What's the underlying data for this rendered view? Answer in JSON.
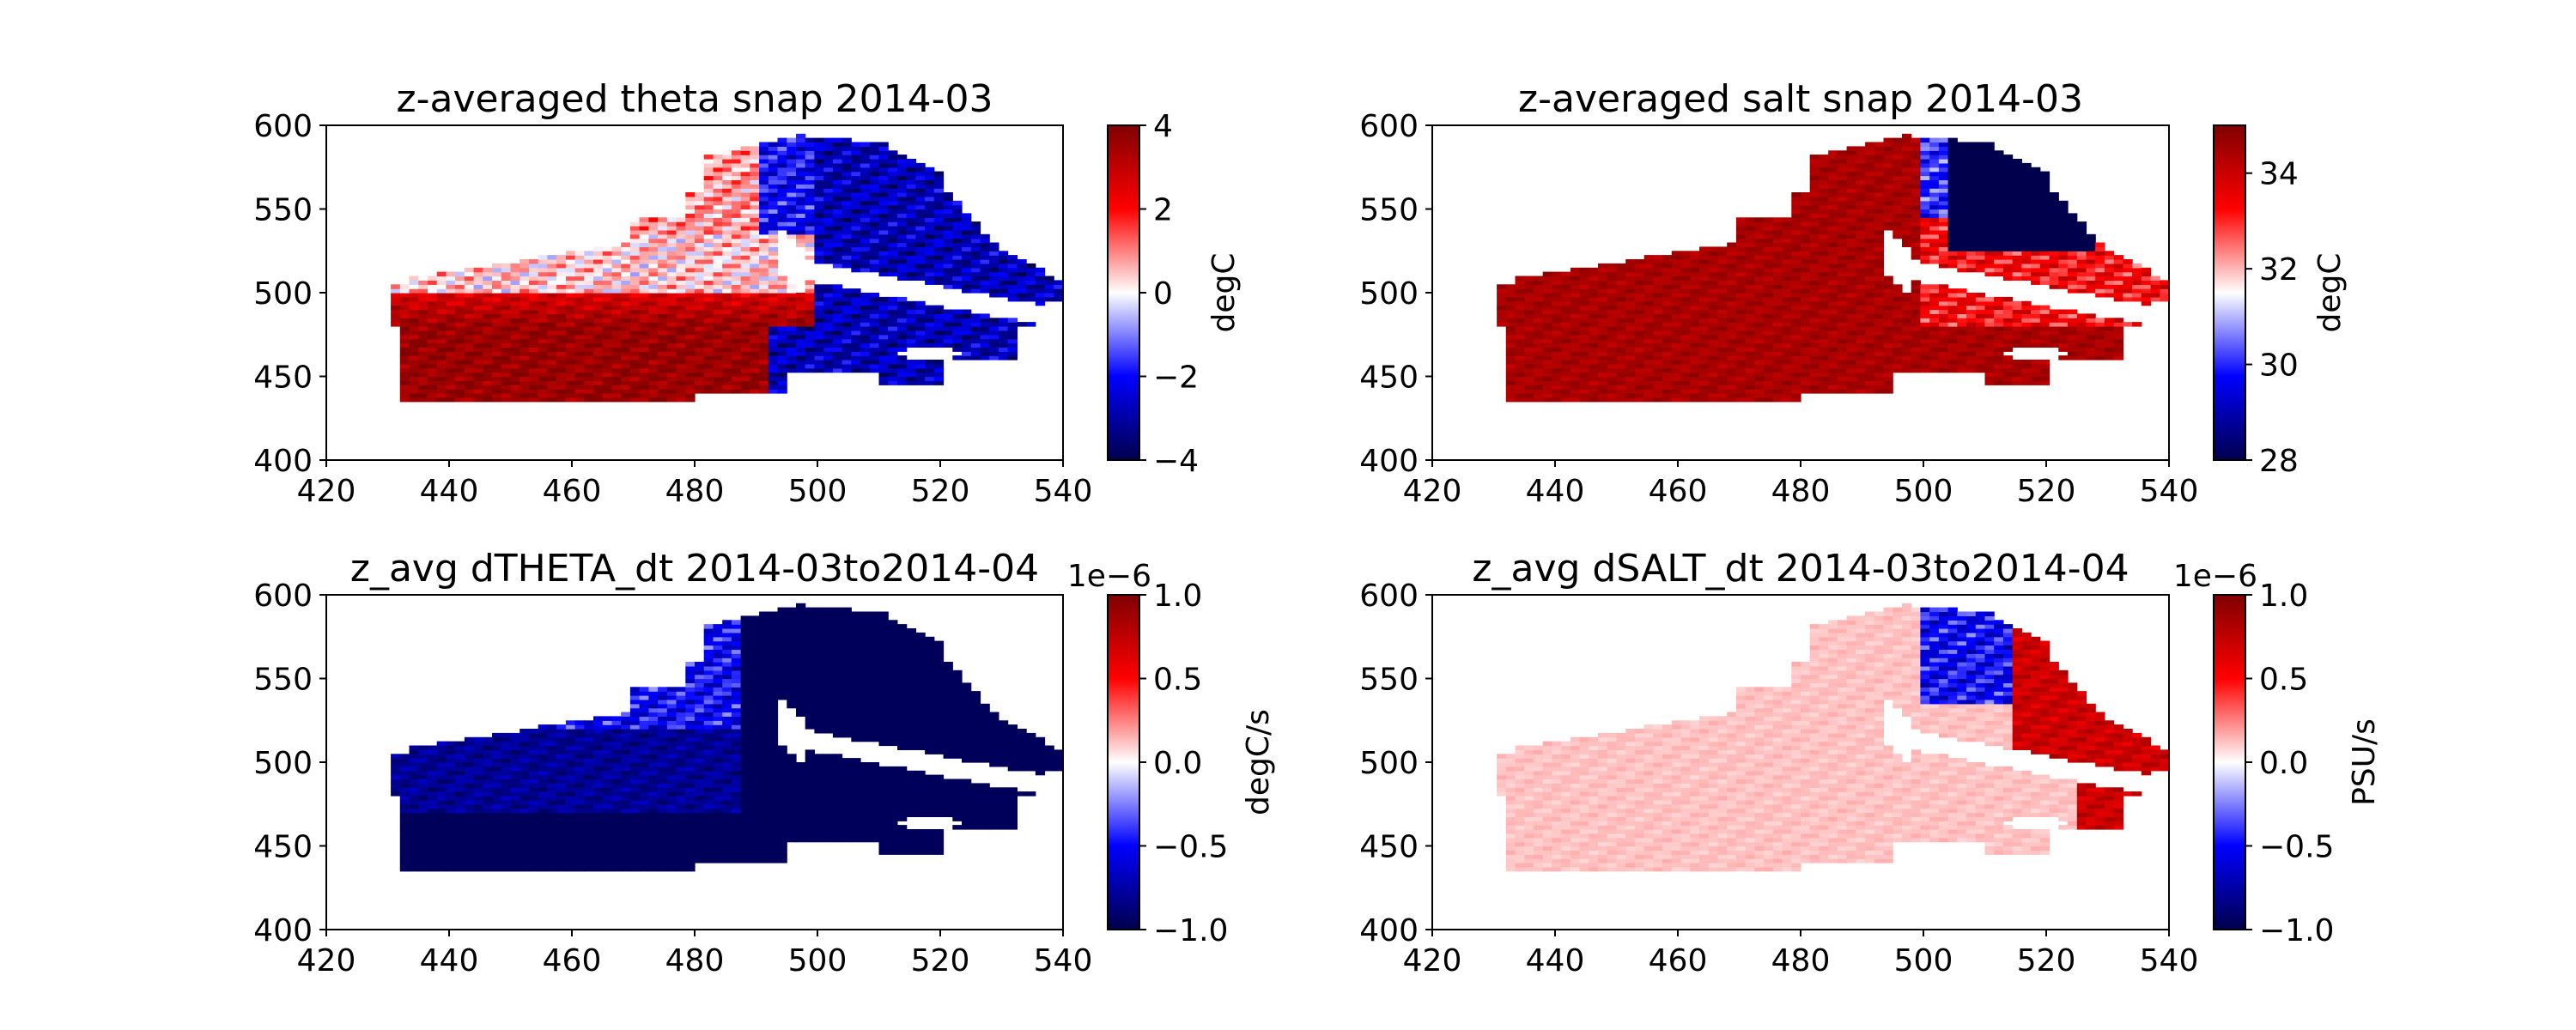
{
  "chart_data": [
    {
      "type": "heatmap",
      "title": "z-averaged theta snap 2014-03",
      "xlim": [
        420,
        540
      ],
      "ylim": [
        400,
        600
      ],
      "x_ticks": [
        "420",
        "440",
        "460",
        "480",
        "500",
        "520",
        "540"
      ],
      "y_ticks": [
        "400",
        "450",
        "500",
        "550",
        "600"
      ],
      "colormap": "seismic",
      "colorbar": {
        "label": "degC",
        "range": [
          -4,
          4
        ],
        "ticks": [
          "4",
          "2",
          "0",
          "−2",
          "−4"
        ],
        "tick_values": [
          4,
          2,
          0,
          -2,
          -4
        ],
        "offset_text": ""
      },
      "pattern": "theta",
      "value_summary": "warm (about +2 to +4 degC) over the southern/central basin 440-495 x, 440-490 y; cold (about -2 to -4 degC) to the east and north of x=495; near 0 around y=500-520"
    },
    {
      "type": "heatmap",
      "title": "z-averaged salt snap 2014-03",
      "xlim": [
        420,
        540
      ],
      "ylim": [
        400,
        600
      ],
      "x_ticks": [
        "420",
        "440",
        "460",
        "480",
        "500",
        "520",
        "540"
      ],
      "y_ticks": [
        "400",
        "450",
        "500",
        "550",
        "600"
      ],
      "colormap": "seismic",
      "colorbar": {
        "label": "degC",
        "range": [
          28,
          35
        ],
        "ticks": [
          "34",
          "32",
          "30",
          "28"
        ],
        "tick_values": [
          34,
          32,
          30,
          28
        ],
        "offset_text": ""
      },
      "pattern": "salt",
      "value_summary": "high salinity (about 34-35) across most of the basin; fresher water (about 28-30) in the north-east near x=505-525, y=530-575"
    },
    {
      "type": "heatmap",
      "title": "z_avg dTHETA_dt 2014-03to2014-04",
      "xlim": [
        420,
        540
      ],
      "ylim": [
        400,
        600
      ],
      "x_ticks": [
        "420",
        "440",
        "460",
        "480",
        "500",
        "520",
        "540"
      ],
      "y_ticks": [
        "400",
        "450",
        "500",
        "550",
        "600"
      ],
      "colormap": "seismic",
      "colorbar": {
        "label": "degC/s",
        "range": [
          -1.0,
          1.0
        ],
        "ticks": [
          "1.0",
          "0.5",
          "0.0",
          "−0.5",
          "−1.0"
        ],
        "tick_values": [
          1.0,
          0.5,
          0.0,
          -0.5,
          -1.0
        ],
        "offset_text": "1e−6"
      },
      "pattern": "dtheta",
      "value_summary": "cooling everywhere; strongest (about -1e-6 degC/s) in the south and east, weaker (about -0.3e-6) in the north-central region"
    },
    {
      "type": "heatmap",
      "title": "z_avg dSALT_dt 2014-03to2014-04",
      "xlim": [
        420,
        540
      ],
      "ylim": [
        400,
        600
      ],
      "x_ticks": [
        "420",
        "440",
        "460",
        "480",
        "500",
        "520",
        "540"
      ],
      "y_ticks": [
        "400",
        "450",
        "500",
        "550",
        "600"
      ],
      "colormap": "seismic",
      "colorbar": {
        "label": "PSU/s",
        "range": [
          -1.0,
          1.0
        ],
        "ticks": [
          "1.0",
          "0.5",
          "0.0",
          "−0.5",
          "−1.0"
        ],
        "tick_values": [
          1.0,
          0.5,
          0.0,
          -0.5,
          -1.0
        ],
        "offset_text": "1e−6"
      },
      "pattern": "dsalt",
      "value_summary": "weakly positive (about +0.1e-6 PSU/s) over most of the basin; strong positive (up to +1e-6) in the north-east x=515-540; negative patches near x=500-512, y=540-580"
    }
  ]
}
